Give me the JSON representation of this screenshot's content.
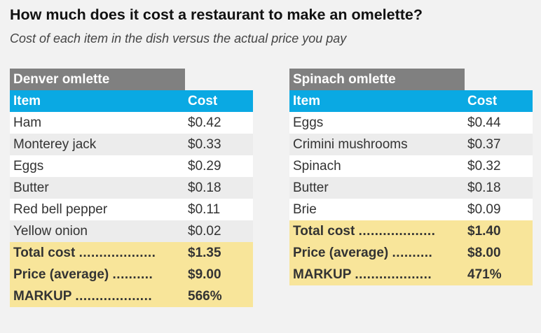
{
  "title": "How much does it cost a restaurant to make an omelette?",
  "subtitle": "Cost of each item in the dish versus the actual price you pay",
  "chart_data": [
    {
      "type": "table",
      "dish": "Denver omlette",
      "columns": [
        "Item",
        "Cost"
      ],
      "rows": [
        {
          "item": "Ham",
          "cost": "$0.42"
        },
        {
          "item": "Monterey jack",
          "cost": "$0.33"
        },
        {
          "item": "Eggs",
          "cost": "$0.29"
        },
        {
          "item": "Butter",
          "cost": "$0.18"
        },
        {
          "item": "Red bell pepper",
          "cost": "$0.11"
        },
        {
          "item": "Yellow onion",
          "cost": "$0.02"
        }
      ],
      "summary": [
        {
          "label": "Total cost",
          "dots": "...................",
          "value": "$1.35"
        },
        {
          "label": "Price (average)",
          "dots": "..........",
          "value": "$9.00"
        },
        {
          "label": "MARKUP",
          "dots": "...................",
          "value": "566%"
        }
      ]
    },
    {
      "type": "table",
      "dish": "Spinach omlette",
      "columns": [
        "Item",
        "Cost"
      ],
      "rows": [
        {
          "item": "Eggs",
          "cost": "$0.44"
        },
        {
          "item": "Crimini mushrooms",
          "cost": "$0.37"
        },
        {
          "item": "Spinach",
          "cost": "$0.32"
        },
        {
          "item": "Butter",
          "cost": "$0.18"
        },
        {
          "item": "Brie",
          "cost": "$0.09"
        }
      ],
      "summary": [
        {
          "label": "Total cost",
          "dots": "...................",
          "value": "$1.40"
        },
        {
          "label": "Price (average)",
          "dots": "..........",
          "value": "$8.00"
        },
        {
          "label": "MARKUP",
          "dots": "...................",
          "value": "471%"
        }
      ]
    }
  ]
}
